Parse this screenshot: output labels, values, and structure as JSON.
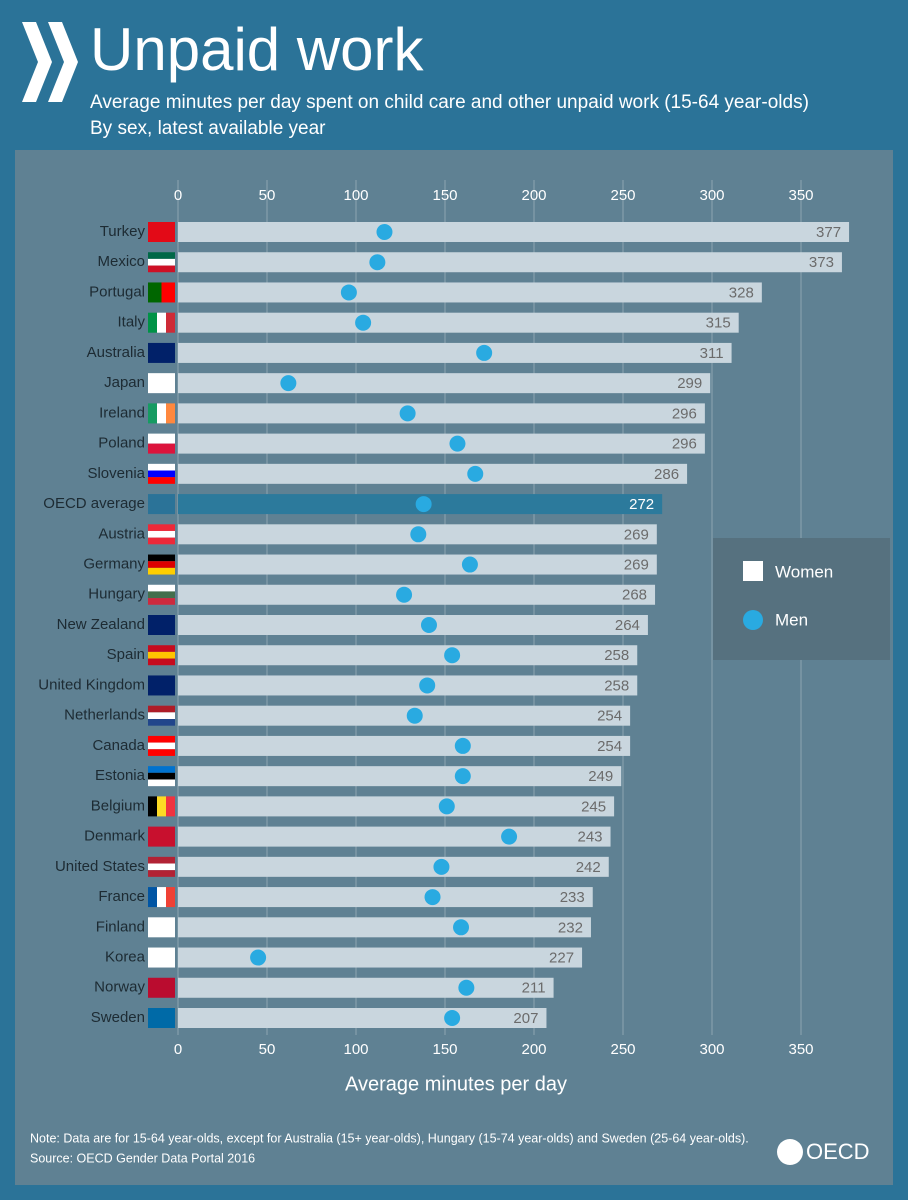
{
  "chart_data": {
    "type": "bar-dot",
    "title": "Unpaid work",
    "subtitle": [
      "Average minutes per day spent on child care and other unpaid work (15-64 year-olds)",
      "By sex, latest available year"
    ],
    "x_label": "Average minutes per day",
    "categories": [
      "Turkey",
      "Mexico",
      "Portugal",
      "Italy",
      "Australia",
      "Japan",
      "Ireland",
      "Poland",
      "Slovenia",
      "OECD average",
      "Austria",
      "Germany",
      "Hungary",
      "New Zealand",
      "Spain",
      "United Kingdom",
      "Netherlands",
      "Canada",
      "Estonia",
      "Belgium",
      "Denmark",
      "United States",
      "France",
      "Finland",
      "Korea",
      "Norway",
      "Sweden"
    ],
    "series": [
      {
        "name": "Women",
        "color": "#c9d6de",
        "colors": [
          "#c9d6de",
          "#c9d6de",
          "#c9d6de",
          "#c9d6de",
          "#c9d6de",
          "#c9d6de",
          "#c9d6de",
          "#c9d6de",
          "#c9d6de",
          "#2c7a9c",
          "#c9d6de",
          "#c9d6de",
          "#c9d6de",
          "#c9d6de",
          "#c9d6de",
          "#c9d6de",
          "#c9d6de",
          "#c9d6de",
          "#c9d6de",
          "#c9d6de",
          "#c9d6de",
          "#c9d6de",
          "#c9d6de",
          "#c9d6de",
          "#c9d6de",
          "#c9d6de",
          "#c9d6de"
        ],
        "values": [
          377,
          373,
          328,
          315,
          311,
          299,
          296,
          296,
          286,
          272,
          269,
          269,
          268,
          264,
          258,
          258,
          254,
          254,
          249,
          245,
          243,
          242,
          233,
          232,
          227,
          211,
          207
        ]
      },
      {
        "name": "Men",
        "color": "#29aae1",
        "values": [
          116,
          112,
          96,
          104,
          172,
          62,
          129,
          157,
          167,
          138,
          135,
          164,
          127,
          141,
          154,
          140,
          133,
          160,
          160,
          151,
          186,
          148,
          143,
          159,
          45,
          162,
          154
        ]
      }
    ],
    "xlim": [
      0,
      400
    ],
    "xticks": [
      0,
      50,
      100,
      150,
      200,
      250,
      300,
      350
    ],
    "grid": true,
    "legend": "right",
    "note": "Note: Data are for 15-64 year-olds, except for Australia (15+ year-olds), Hungary (15-74 year-olds) and Sweden (25-64 year-olds).",
    "source": "Source: OECD Gender Data Portal 2016",
    "logo": "OECD"
  }
}
